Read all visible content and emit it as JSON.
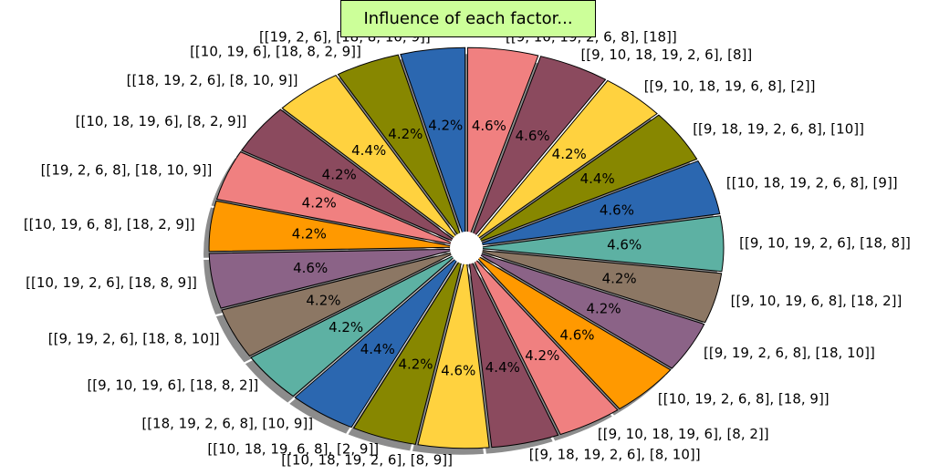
{
  "chart_data": {
    "type": "pie",
    "title": "Influence of each factor...",
    "title_background": "#ccff99",
    "shadow": true,
    "exploded": true,
    "start_angle_deg": 90,
    "direction": "clockwise",
    "colors": [
      "#f08080",
      "#8b4a5e",
      "#ffd23f",
      "#878700",
      "#2b67b0",
      "#5db1a3",
      "#8c7764",
      "#8b6387",
      "#ff9900"
    ],
    "slices": [
      {
        "label": "[[9, 10, 19, 2, 6, 8], [18]]",
        "value": 4.6,
        "pct_text": "4.6%"
      },
      {
        "label": "[[9, 10, 18, 19, 2, 6], [8]]",
        "value": 4.6,
        "pct_text": "4.6%"
      },
      {
        "label": "[[9, 10, 18, 19, 6, 8], [2]]",
        "value": 4.2,
        "pct_text": "4.2%"
      },
      {
        "label": "[[9, 18, 19, 2, 6, 8], [10]]",
        "value": 4.4,
        "pct_text": "4.4%"
      },
      {
        "label": "[[10, 18, 19, 2, 6, 8], [9]]",
        "value": 4.6,
        "pct_text": "4.6%"
      },
      {
        "label": "[[9, 10, 19, 2, 6], [18, 8]]",
        "value": 4.6,
        "pct_text": "4.6%"
      },
      {
        "label": "[[9, 10, 19, 6, 8], [18, 2]]",
        "value": 4.2,
        "pct_text": "4.2%"
      },
      {
        "label": "[[9, 19, 2, 6, 8], [18, 10]]",
        "value": 4.2,
        "pct_text": "4.2%"
      },
      {
        "label": "[[10, 19, 2, 6, 8], [18, 9]]",
        "value": 4.6,
        "pct_text": "4.6%"
      },
      {
        "label": "[[9, 10, 18, 19, 6], [8, 2]]",
        "value": 4.2,
        "pct_text": "4.2%"
      },
      {
        "label": "[[9, 18, 19, 2, 6], [8, 10]]",
        "value": 4.4,
        "pct_text": "4.4%"
      },
      {
        "label": "[[10, 18, 19, 2, 6], [8, 9]]",
        "value": 4.6,
        "pct_text": "4.6%"
      },
      {
        "label": "[[10, 18, 19, 6, 8], [2, 9]]",
        "value": 4.2,
        "pct_text": "4.2%"
      },
      {
        "label": "[[18, 19, 2, 6, 8], [10, 9]]",
        "value": 4.4,
        "pct_text": "4.4%"
      },
      {
        "label": "[[9, 10, 19, 6], [18, 8, 2]]",
        "value": 4.2,
        "pct_text": "4.2%"
      },
      {
        "label": "[[9, 19, 2, 6], [18, 8, 10]]",
        "value": 4.2,
        "pct_text": "4.2%"
      },
      {
        "label": "[[10, 19, 2, 6], [18, 8, 9]]",
        "value": 4.6,
        "pct_text": "4.6%"
      },
      {
        "label": "[[10, 19, 6, 8], [18, 2, 9]]",
        "value": 4.2,
        "pct_text": "4.2%"
      },
      {
        "label": "[[19, 2, 6, 8], [18, 10, 9]]",
        "value": 4.2,
        "pct_text": "4.2%"
      },
      {
        "label": "[[10, 18, 19, 6], [8, 2, 9]]",
        "value": 4.2,
        "pct_text": "4.2%"
      },
      {
        "label": "[[18, 19, 2, 6], [8, 10, 9]]",
        "value": 4.4,
        "pct_text": "4.4%"
      },
      {
        "label": "[[10, 19, 6], [18, 8, 2, 9]]",
        "value": 4.2,
        "pct_text": "4.2%"
      },
      {
        "label": "[[19, 2, 6], [18, 8, 10, 9]]",
        "value": 4.2,
        "pct_text": "4.2%"
      }
    ]
  }
}
